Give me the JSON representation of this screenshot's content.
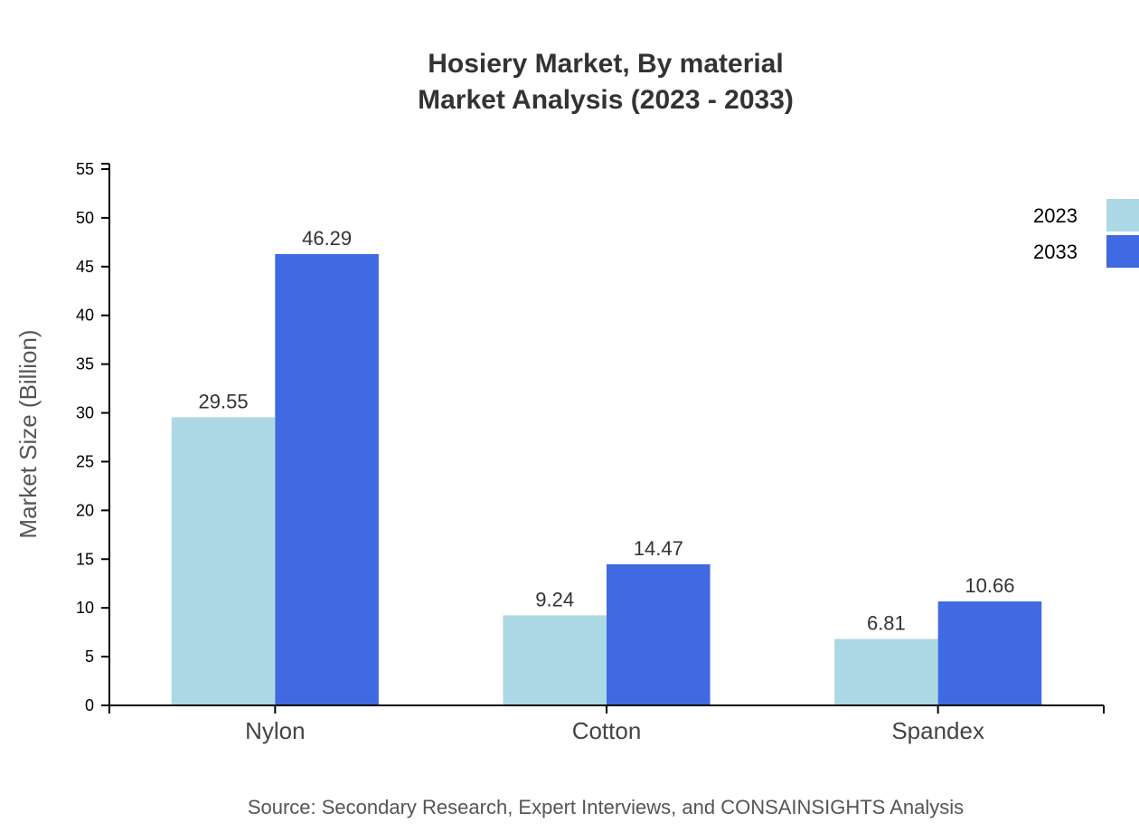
{
  "chart_data": {
    "type": "bar",
    "title": "Hosiery Market, By material",
    "subtitle": "Market Analysis (2023 - 2033)",
    "xlabel": "",
    "ylabel": "Market Size (Billion)",
    "ylim": [
      0,
      55
    ],
    "yticks": [
      0,
      5,
      10,
      15,
      20,
      25,
      30,
      35,
      40,
      45,
      50,
      55
    ],
    "categories": [
      "Nylon",
      "Cotton",
      "Spandex"
    ],
    "series": [
      {
        "name": "2023",
        "color": "#add8e6",
        "values": [
          29.55,
          9.24,
          6.81
        ]
      },
      {
        "name": "2033",
        "color": "#4169e1",
        "values": [
          46.29,
          14.47,
          10.66
        ]
      }
    ],
    "legend_position": "top-right",
    "grid": false,
    "source": "Source: Secondary Research, Expert Interviews, and CONSAINSIGHTS Analysis"
  }
}
